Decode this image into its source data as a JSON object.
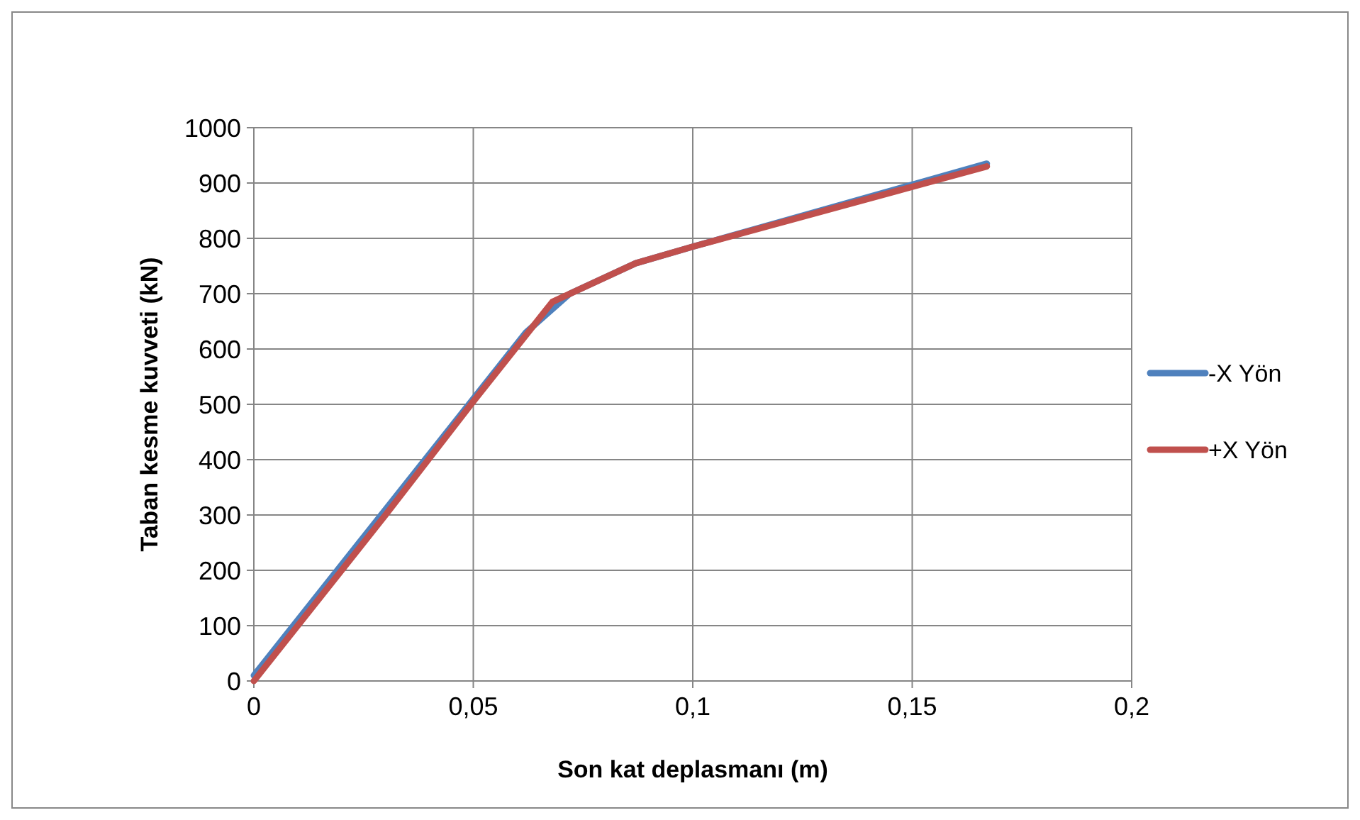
{
  "chart_data": {
    "type": "line",
    "xlabel": "Son kat deplasmanı (m)",
    "ylabel": "Taban kesme kuvveti (kN)",
    "xlim": [
      0,
      0.2
    ],
    "xticks": [
      {
        "value": 0,
        "label": "0"
      },
      {
        "value": 0.05,
        "label": "0,05"
      },
      {
        "value": 0.1,
        "label": "0,1"
      },
      {
        "value": 0.15,
        "label": "0,15"
      },
      {
        "value": 0.2,
        "label": "0,2"
      }
    ],
    "ylim": [
      0,
      1000
    ],
    "yticks": [
      0,
      100,
      200,
      300,
      400,
      500,
      600,
      700,
      800,
      900,
      1000
    ],
    "grid": true,
    "legend": "right",
    "line_style": "solid",
    "series": [
      {
        "name": "-X Yön",
        "color": "#4f81bd",
        "x": [
          0,
          0.03,
          0.062,
          0.072,
          0.087,
          0.1,
          0.167
        ],
        "values": [
          10,
          310,
          630,
          700,
          755,
          785,
          935
        ]
      },
      {
        "name": "+X Yön",
        "color": "#c0504d",
        "x": [
          0,
          0.03,
          0.05,
          0.068,
          0.087,
          0.1,
          0.167
        ],
        "values": [
          0,
          300,
          505,
          685,
          755,
          785,
          930
        ]
      }
    ]
  }
}
